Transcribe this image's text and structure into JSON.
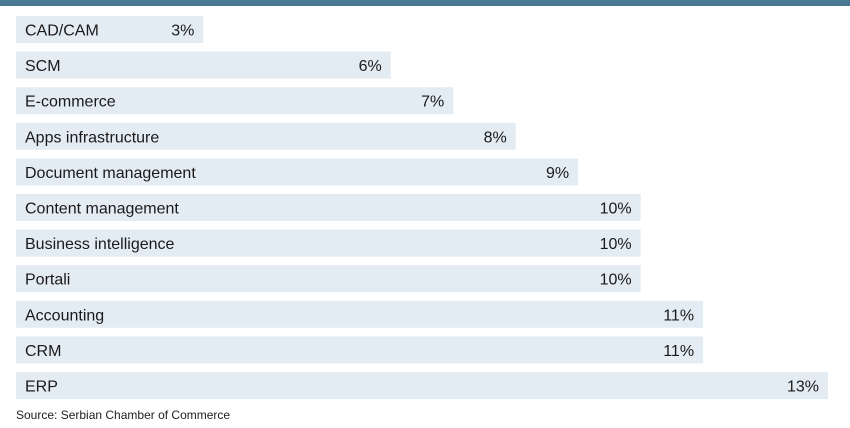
{
  "chart_data": {
    "type": "bar",
    "orientation": "horizontal",
    "categories": [
      "CAD/CAM",
      "SCM",
      "E-commerce",
      "Apps infrastructure",
      "Document management",
      "Content management",
      "Business intelligence",
      "Portali",
      "Accounting",
      "CRM",
      "ERP"
    ],
    "values": [
      3,
      6,
      7,
      8,
      9,
      10,
      10,
      10,
      11,
      11,
      13
    ],
    "value_labels": [
      "3%",
      "6%",
      "7%",
      "8%",
      "9%",
      "10%",
      "10%",
      "10%",
      "11%",
      "11%",
      "13%"
    ],
    "unit": "%",
    "xlim": [
      0,
      13
    ],
    "grid": false,
    "legend": "none"
  },
  "source": "Source: Serbian Chamber of Commerce",
  "colors": {
    "bar": "#e3ebf3",
    "top_band": "#4a7792",
    "text": "#1a1a1a"
  }
}
